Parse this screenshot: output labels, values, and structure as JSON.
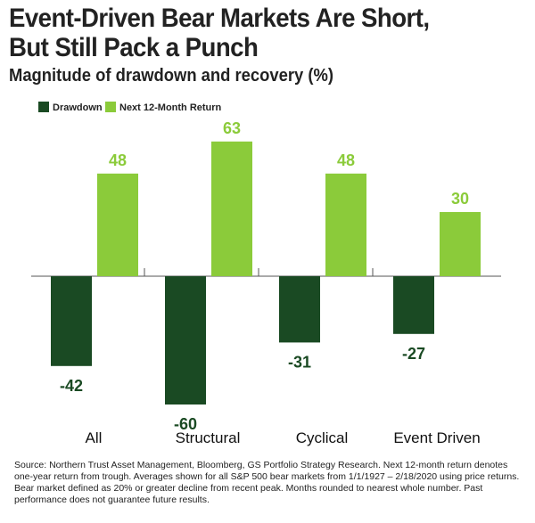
{
  "header": {
    "title_line1": "Event-Driven Bear Markets Are Short,",
    "title_line2": "But Still Pack a Punch",
    "subtitle": "Magnitude of drawdown and recovery (%)"
  },
  "footer": {
    "source": "Source: Northern Trust Asset Management, Bloomberg, GS Portfolio Strategy Research. Next 12-month return denotes one-year return from trough. Averages shown for all S&P 500 bear markets from 1/1/1927 – 2/18/2020 using price returns. Bear market defined as 20% or greater decline from recent peak. Months rounded to nearest whole number. Past performance does not guarantee future results."
  },
  "chart_data": {
    "type": "bar",
    "title": "Magnitude of drawdown and recovery (%)",
    "xlabel": "",
    "ylabel": "",
    "categories": [
      "All",
      "Structural",
      "Cyclical",
      "Event Driven"
    ],
    "series": [
      {
        "name": "Drawdown",
        "values": [
          -42,
          -60,
          -31,
          -27
        ],
        "color": "#1a4a23"
      },
      {
        "name": "Next 12-Month Return",
        "values": [
          48,
          63,
          48,
          30
        ],
        "color": "#8bcb3a"
      }
    ],
    "ylim": [
      -60,
      63
    ],
    "grid": false,
    "legend": "top-left",
    "label_colors": {
      "negative": "#1a4a23",
      "positive": "#8bcb3a"
    }
  }
}
